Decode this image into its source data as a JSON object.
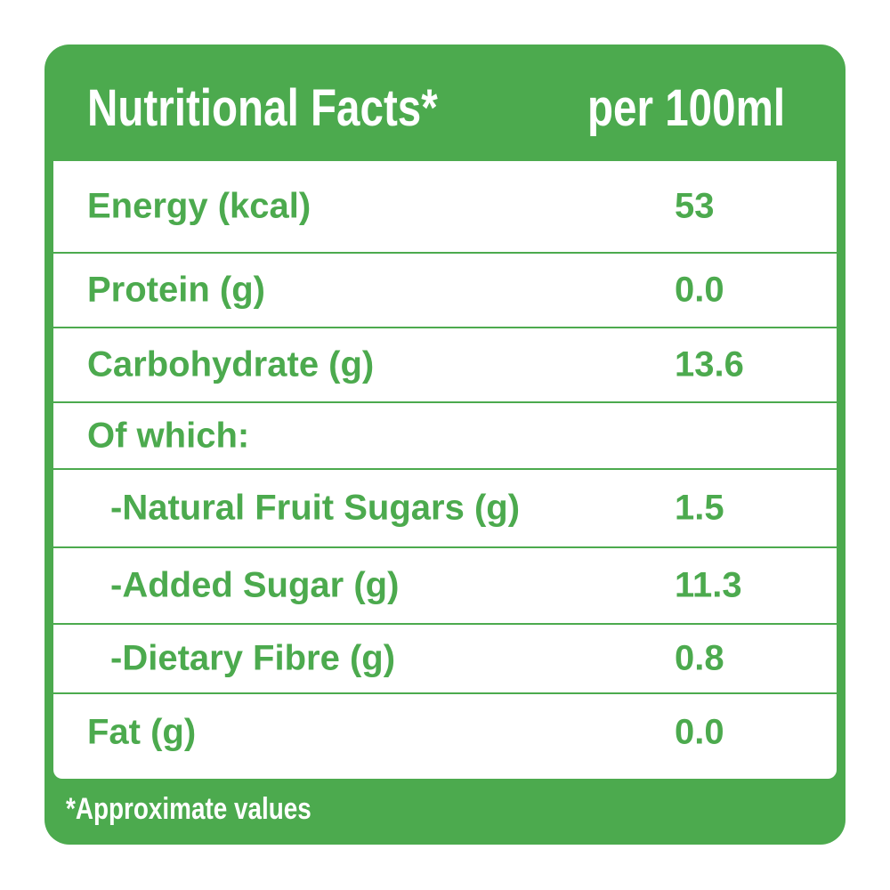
{
  "header": {
    "title": "Nutritional Facts*",
    "per": "per 100ml"
  },
  "rows": [
    {
      "label": "Energy (kcal)",
      "value": "53"
    },
    {
      "label": "Protein (g)",
      "value": "0.0"
    },
    {
      "label": "Carbohydrate (g)",
      "value": "13.6"
    },
    {
      "label": "Of which:",
      "value": ""
    },
    {
      "label": "-Natural Fruit Sugars (g)",
      "value": "1.5"
    },
    {
      "label": "-Added Sugar (g)",
      "value": "11.3"
    },
    {
      "label": "-Dietary Fibre (g)",
      "value": "0.8"
    },
    {
      "label": "Fat (g)",
      "value": "0.0"
    }
  ],
  "footnote": "*Approximate values",
  "colors": {
    "brand_green": "#4caa4e",
    "background": "#ffffff"
  }
}
